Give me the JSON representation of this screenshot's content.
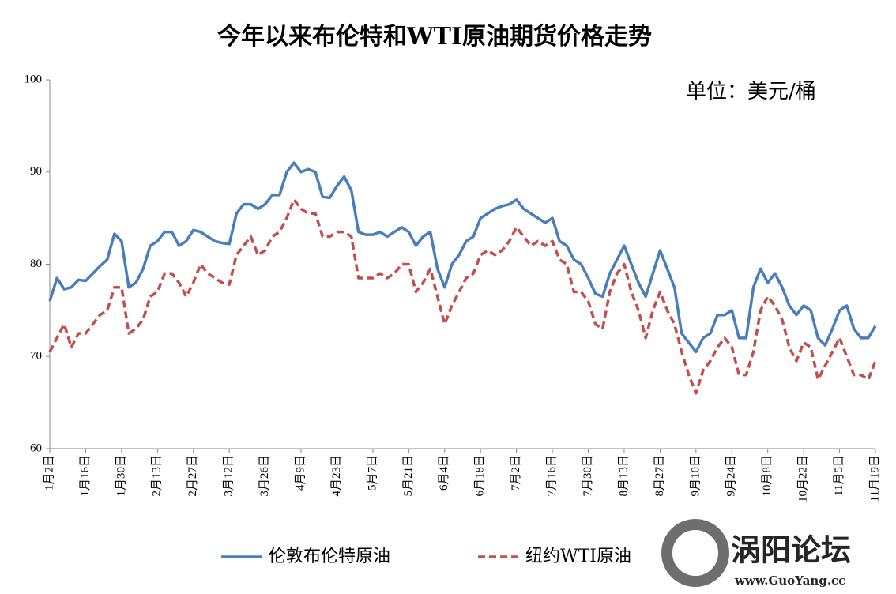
{
  "chart_data": {
    "type": "line",
    "title": "今年以来布伦特和WTI原油期货价格走势",
    "unit_label": "单位：美元/桶",
    "categories": [
      "1月2日",
      null,
      null,
      null,
      null,
      "1月16日",
      null,
      null,
      null,
      null,
      "1月30日",
      null,
      null,
      null,
      null,
      "2月13日",
      null,
      null,
      null,
      null,
      "2月27日",
      null,
      null,
      null,
      null,
      "3月12日",
      null,
      null,
      null,
      null,
      "3月26日",
      null,
      null,
      null,
      null,
      "4月9日",
      null,
      null,
      null,
      null,
      "4月23日",
      null,
      null,
      null,
      null,
      "5月7日",
      null,
      null,
      null,
      null,
      "5月21日",
      null,
      null,
      null,
      null,
      "6月4日",
      null,
      null,
      null,
      null,
      "6月18日",
      null,
      null,
      null,
      null,
      "7月2日",
      null,
      null,
      null,
      null,
      "7月16日",
      null,
      null,
      null,
      null,
      "7月30日",
      null,
      null,
      null,
      null,
      "8月13日",
      null,
      null,
      null,
      null,
      "8月27日",
      null,
      null,
      null,
      null,
      "9月10日",
      null,
      null,
      null,
      null,
      "9月24日",
      null,
      null,
      null,
      null,
      "10月8日",
      null,
      null,
      null,
      null,
      "10月22日",
      null,
      null,
      null,
      null,
      "11月5日",
      null,
      null,
      null,
      null,
      "11月19日"
    ],
    "series": [
      {
        "name": "伦敦布伦特原油",
        "color": "#4a7ebb",
        "dash": false,
        "values": [
          76,
          78.5,
          77.3,
          77.5,
          78.3,
          78.2,
          79,
          79.8,
          80.5,
          83.3,
          82.5,
          77.5,
          78,
          79.5,
          82,
          82.5,
          83.5,
          83.5,
          82,
          82.5,
          83.7,
          83.5,
          83,
          82.5,
          82.3,
          82.2,
          85.5,
          86.5,
          86.5,
          86,
          86.5,
          87.5,
          87.5,
          90,
          91,
          90,
          90.3,
          90,
          87.3,
          87.2,
          88.5,
          89.5,
          88,
          83.5,
          83.2,
          83.2,
          83.5,
          83,
          83.5,
          84,
          83.5,
          82,
          83,
          83.5,
          79.5,
          77.5,
          80,
          81,
          82.5,
          83,
          85,
          85.5,
          86,
          86.3,
          86.5,
          87,
          86,
          85.5,
          85,
          84.5,
          85,
          82.5,
          82,
          80.5,
          80,
          78.5,
          76.8,
          76.5,
          79,
          80.5,
          82,
          80,
          78,
          76.5,
          79,
          81.5,
          79.5,
          77.5,
          72.5,
          71.5,
          70.5,
          72,
          72.5,
          74.5,
          74.5,
          75,
          72,
          72,
          77.5,
          79.5,
          78,
          79,
          77.5,
          75.5,
          74.5,
          75.5,
          75,
          72,
          71.2,
          73,
          75,
          75.5,
          73,
          72,
          72,
          73.3
        ]
      },
      {
        "name": "纽约WTI原油",
        "color": "#c0504d",
        "dash": true,
        "values": [
          70.5,
          72,
          73.5,
          71,
          72.5,
          72.5,
          73.5,
          74.5,
          75,
          77.5,
          77.5,
          72.5,
          73,
          74,
          76.5,
          77,
          79,
          79,
          78,
          76.5,
          78,
          80,
          79,
          78.5,
          78,
          77.8,
          81,
          82,
          83,
          81,
          81.5,
          83,
          83.5,
          85,
          87,
          86,
          85.5,
          85.5,
          83,
          83,
          83.5,
          83.5,
          83,
          78.5,
          78.5,
          78.5,
          79,
          78.5,
          79,
          80,
          80,
          77,
          78,
          79.5,
          76.5,
          73.5,
          75.5,
          77,
          78.5,
          79,
          81,
          81.5,
          81,
          81.5,
          82.5,
          84,
          83,
          82,
          82.5,
          82,
          82.5,
          80.5,
          80,
          77,
          77,
          76,
          73.5,
          73,
          77,
          79,
          80,
          77,
          75,
          72,
          75,
          77,
          75,
          73.5,
          70.5,
          68,
          66,
          68.5,
          69.5,
          71,
          72,
          71,
          68,
          68,
          70.5,
          75,
          76.5,
          75.5,
          74,
          71,
          69.5,
          71.5,
          71,
          67.5,
          69,
          70.5,
          72,
          70,
          68,
          68,
          67.5,
          69.5
        ]
      }
    ],
    "ylim": [
      60,
      100
    ],
    "yticks": [
      60,
      70,
      80,
      90,
      100
    ],
    "grid": false,
    "legend": "bottom"
  },
  "watermark": {
    "brand": "涡阳论坛",
    "url": "www.GuoYang.cc"
  }
}
